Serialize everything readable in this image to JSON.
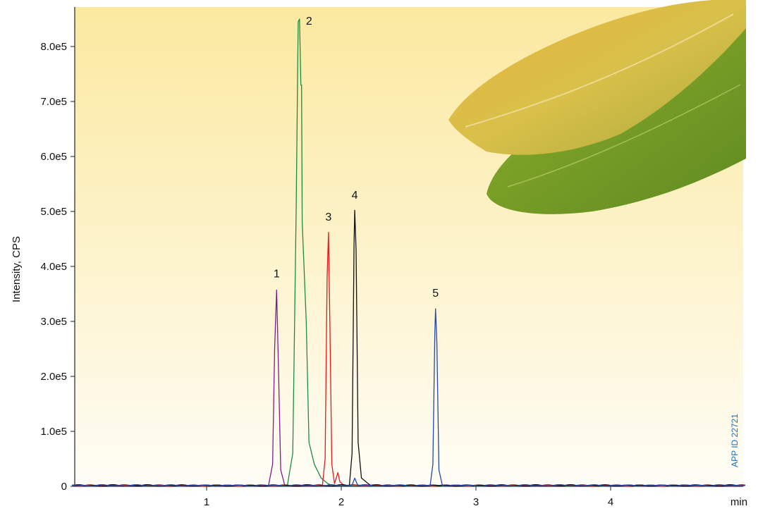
{
  "chart_data": {
    "type": "line",
    "xlabel": "min",
    "ylabel": "Intensity, CPS",
    "xlim": [
      0,
      5.0
    ],
    "ylim": [
      0,
      860000
    ],
    "grid": false,
    "x_ticks": [
      {
        "value": 1,
        "label": "1"
      },
      {
        "value": 2,
        "label": "2"
      },
      {
        "value": 3,
        "label": "3"
      },
      {
        "value": 4,
        "label": "4"
      }
    ],
    "y_ticks": [
      {
        "value": 0,
        "label": "0"
      },
      {
        "value": 100000,
        "label": "1.0e5"
      },
      {
        "value": 200000,
        "label": "2.0e5"
      },
      {
        "value": 300000,
        "label": "3.0e5"
      },
      {
        "value": 400000,
        "label": "4.0e5"
      },
      {
        "value": 500000,
        "label": "5.0e5"
      },
      {
        "value": 600000,
        "label": "6.0e5"
      },
      {
        "value": 700000,
        "label": "7.0e5"
      },
      {
        "value": 800000,
        "label": "8.0e5"
      }
    ],
    "series": [
      {
        "label": "1",
        "color": "#7b1f8c",
        "rt": 1.52,
        "height": 357000,
        "width": 0.018,
        "label_at": 375000,
        "points": [
          [
            0,
            2000
          ],
          [
            1.46,
            2000
          ],
          [
            1.49,
            40000
          ],
          [
            1.505,
            250000
          ],
          [
            1.52,
            357000
          ],
          [
            1.535,
            200000
          ],
          [
            1.55,
            30000
          ],
          [
            1.58,
            2000
          ],
          [
            5.0,
            2000
          ]
        ]
      },
      {
        "label": "2",
        "color": "#1e8a44",
        "rt": 1.685,
        "height": 850000,
        "width": 0.03,
        "label_at": 855000,
        "points": [
          [
            0,
            2000
          ],
          [
            1.6,
            2000
          ],
          [
            1.64,
            60000
          ],
          [
            1.665,
            500000
          ],
          [
            1.68,
            845000
          ],
          [
            1.69,
            850000
          ],
          [
            1.7,
            730000
          ],
          [
            1.705,
            730000
          ],
          [
            1.71,
            480000
          ],
          [
            1.74,
            300000
          ],
          [
            1.76,
            80000
          ],
          [
            1.8,
            40000
          ],
          [
            1.85,
            15000
          ],
          [
            1.9,
            5000
          ],
          [
            5.0,
            2000
          ]
        ]
      },
      {
        "label": "3",
        "color": "#e01b1b",
        "rt": 1.905,
        "height": 462000,
        "width": 0.016,
        "label_at": 478000,
        "points": [
          [
            0,
            2000
          ],
          [
            1.86,
            2000
          ],
          [
            1.88,
            50000
          ],
          [
            1.895,
            380000
          ],
          [
            1.905,
            462000
          ],
          [
            1.915,
            300000
          ],
          [
            1.93,
            40000
          ],
          [
            1.95,
            5000
          ],
          [
            1.975,
            25000
          ],
          [
            1.99,
            8000
          ],
          [
            2.02,
            2000
          ],
          [
            5.0,
            2000
          ]
        ]
      },
      {
        "label": "4",
        "color": "#111111",
        "rt": 2.1,
        "height": 502000,
        "width": 0.015,
        "label_at": 518000,
        "points": [
          [
            0,
            2000
          ],
          [
            2.06,
            2000
          ],
          [
            2.08,
            60000
          ],
          [
            2.095,
            440000
          ],
          [
            2.1,
            502000
          ],
          [
            2.11,
            430000
          ],
          [
            2.125,
            80000
          ],
          [
            2.15,
            15000
          ],
          [
            2.2,
            5000
          ],
          [
            5.0,
            2000
          ]
        ]
      },
      {
        "label": "5",
        "color": "#2746a8",
        "rt": 2.7,
        "height": 323000,
        "width": 0.014,
        "label_at": 340000,
        "points": [
          [
            0,
            2000
          ],
          [
            2.08,
            2000
          ],
          [
            2.1,
            15000
          ],
          [
            2.12,
            3000
          ],
          [
            2.66,
            2000
          ],
          [
            2.68,
            40000
          ],
          [
            2.695,
            280000
          ],
          [
            2.7,
            323000
          ],
          [
            2.71,
            260000
          ],
          [
            2.725,
            30000
          ],
          [
            2.75,
            2000
          ],
          [
            5.0,
            2000
          ]
        ]
      }
    ]
  },
  "annotations": {
    "app_id": "APP ID 22721"
  },
  "colors": {
    "background_top": "#fbe9a0",
    "background_bottom": "#fffdf6"
  }
}
